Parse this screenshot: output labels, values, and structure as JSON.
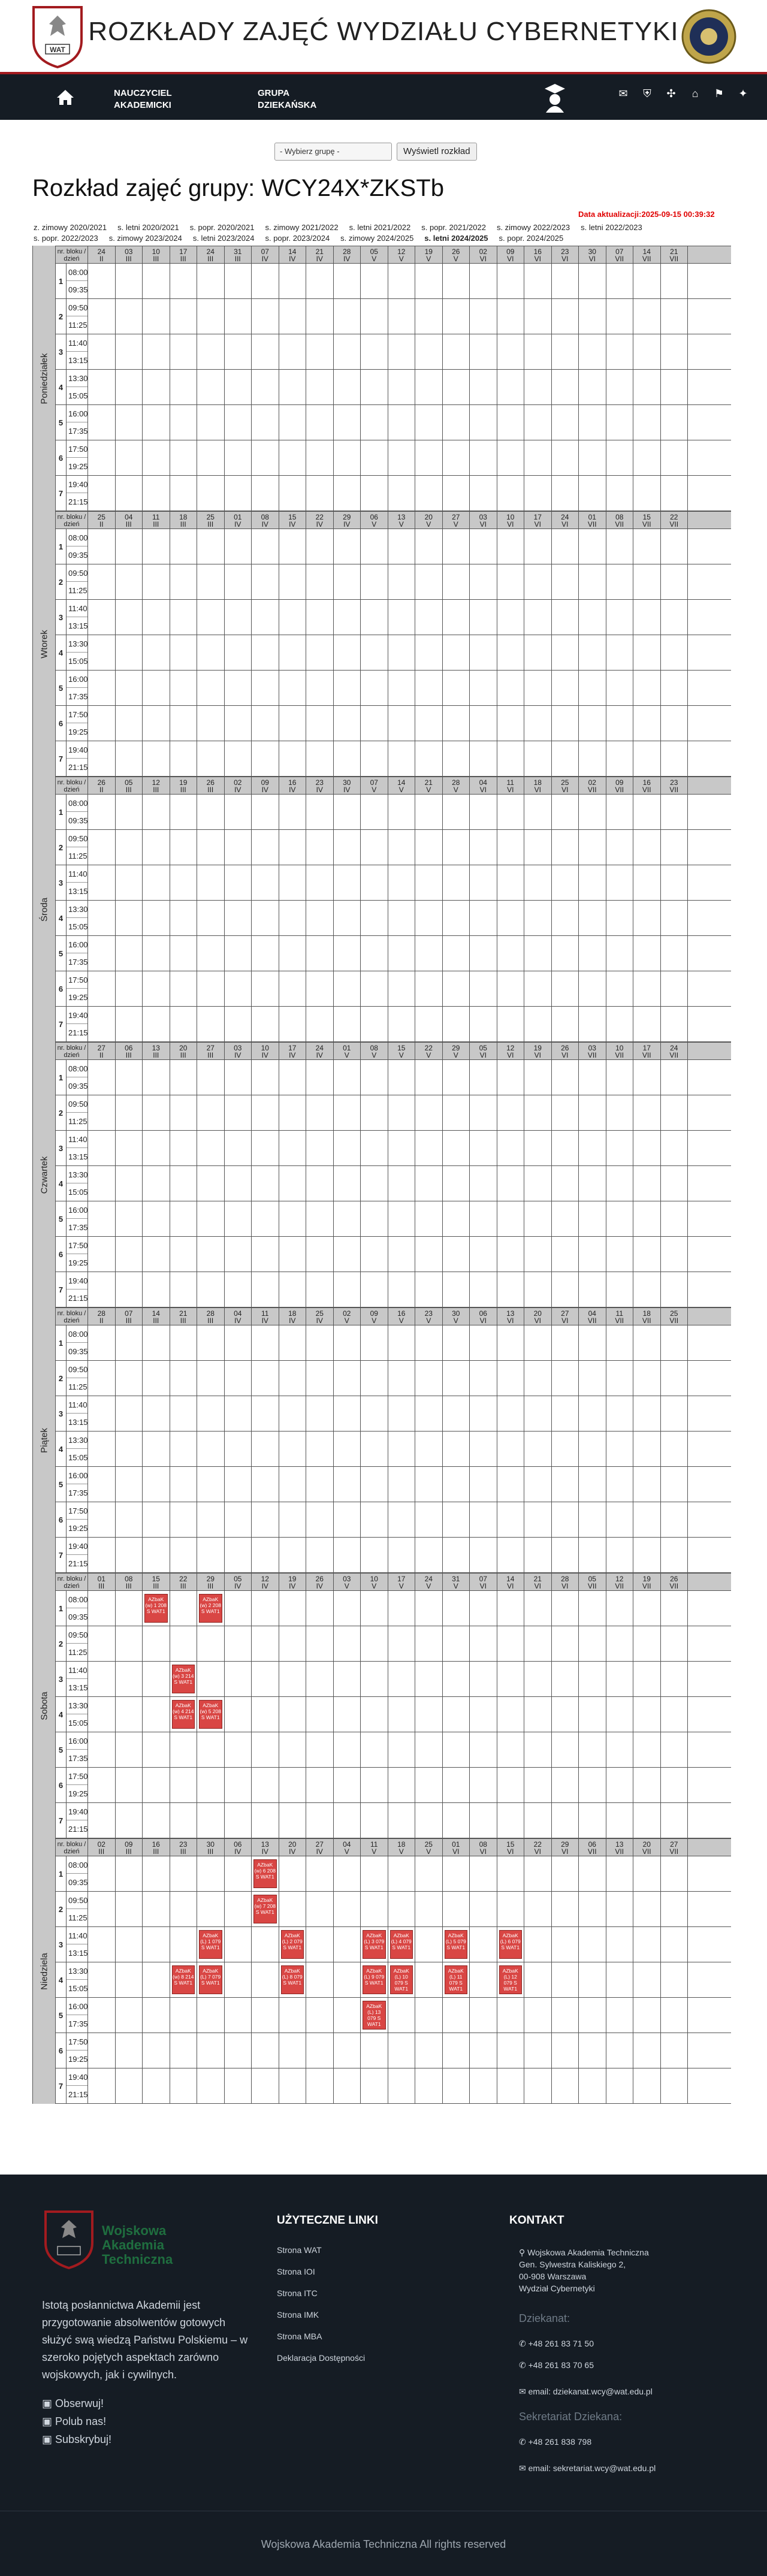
{
  "header": {
    "title": "ROZKŁADY ZAJĘĆ WYDZIAŁU CYBERNETYKI",
    "logo_text": "WAT"
  },
  "nav": {
    "teacher": "NAUCZYCIEL AKADEMICKI",
    "group": "GRUPA DZIEKAŃSKA"
  },
  "controls": {
    "select_value": "- Wybierz grupę -",
    "show_button": "Wyświetl rozkład"
  },
  "page_title": "Rozkład zajęć grupy: WCY24X*ZKSTb",
  "updated": "Data aktualizacji:2025-09-15 00:39:32",
  "semesters_row1": [
    "z. zimowy 2020/2021",
    "s. letni 2020/2021",
    "s. popr. 2020/2021",
    "s. zimowy 2021/2022",
    "s. letni 2021/2022",
    "s. popr. 2021/2022",
    "s. zimowy 2022/2023",
    "s. letni 2022/2023"
  ],
  "semesters_row2": [
    "s. popr. 2022/2023",
    "s. zimowy 2023/2024",
    "s. letni 2023/2024",
    "s. popr. 2023/2024",
    "s. zimowy 2024/2025",
    "s. letni 2024/2025",
    "s. popr. 2024/2025"
  ],
  "table": {
    "header_label": "nr. bloku / dzień",
    "block_times": [
      [
        "08:00",
        "09:35"
      ],
      [
        "09:50",
        "11:25"
      ],
      [
        "11:40",
        "13:15"
      ],
      [
        "13:30",
        "15:05"
      ],
      [
        "16:00",
        "17:35"
      ],
      [
        "17:50",
        "19:25"
      ],
      [
        "19:40",
        "21:15"
      ]
    ],
    "days": [
      {
        "name": "Poniedziałek",
        "dates": [
          [
            "24",
            "II"
          ],
          [
            "03",
            "III"
          ],
          [
            "10",
            "III"
          ],
          [
            "17",
            "III"
          ],
          [
            "24",
            "III"
          ],
          [
            "31",
            "III"
          ],
          [
            "07",
            "IV"
          ],
          [
            "14",
            "IV"
          ],
          [
            "21",
            "IV"
          ],
          [
            "28",
            "IV"
          ],
          [
            "05",
            "V"
          ],
          [
            "12",
            "V"
          ],
          [
            "19",
            "V"
          ],
          [
            "26",
            "V"
          ],
          [
            "02",
            "VI"
          ],
          [
            "09",
            "VI"
          ],
          [
            "16",
            "VI"
          ],
          [
            "23",
            "VI"
          ],
          [
            "30",
            "VI"
          ],
          [
            "07",
            "VII"
          ],
          [
            "14",
            "VII"
          ],
          [
            "21",
            "VII"
          ]
        ],
        "events": []
      },
      {
        "name": "Wtorek",
        "dates": [
          [
            "25",
            "II"
          ],
          [
            "04",
            "III"
          ],
          [
            "11",
            "III"
          ],
          [
            "18",
            "III"
          ],
          [
            "25",
            "III"
          ],
          [
            "01",
            "IV"
          ],
          [
            "08",
            "IV"
          ],
          [
            "15",
            "IV"
          ],
          [
            "22",
            "IV"
          ],
          [
            "29",
            "IV"
          ],
          [
            "06",
            "V"
          ],
          [
            "13",
            "V"
          ],
          [
            "20",
            "V"
          ],
          [
            "27",
            "V"
          ],
          [
            "03",
            "VI"
          ],
          [
            "10",
            "VI"
          ],
          [
            "17",
            "VI"
          ],
          [
            "24",
            "VI"
          ],
          [
            "01",
            "VII"
          ],
          [
            "08",
            "VII"
          ],
          [
            "15",
            "VII"
          ],
          [
            "22",
            "VII"
          ]
        ],
        "events": []
      },
      {
        "name": "Środa",
        "dates": [
          [
            "26",
            "II"
          ],
          [
            "05",
            "III"
          ],
          [
            "12",
            "III"
          ],
          [
            "19",
            "III"
          ],
          [
            "26",
            "III"
          ],
          [
            "02",
            "IV"
          ],
          [
            "09",
            "IV"
          ],
          [
            "16",
            "IV"
          ],
          [
            "23",
            "IV"
          ],
          [
            "30",
            "IV"
          ],
          [
            "07",
            "V"
          ],
          [
            "14",
            "V"
          ],
          [
            "21",
            "V"
          ],
          [
            "28",
            "V"
          ],
          [
            "04",
            "VI"
          ],
          [
            "11",
            "VI"
          ],
          [
            "18",
            "VI"
          ],
          [
            "25",
            "VI"
          ],
          [
            "02",
            "VII"
          ],
          [
            "09",
            "VII"
          ],
          [
            "16",
            "VII"
          ],
          [
            "23",
            "VII"
          ]
        ],
        "events": []
      },
      {
        "name": "Czwartek",
        "dates": [
          [
            "27",
            "II"
          ],
          [
            "06",
            "III"
          ],
          [
            "13",
            "III"
          ],
          [
            "20",
            "III"
          ],
          [
            "27",
            "III"
          ],
          [
            "03",
            "IV"
          ],
          [
            "10",
            "IV"
          ],
          [
            "17",
            "IV"
          ],
          [
            "24",
            "IV"
          ],
          [
            "01",
            "V"
          ],
          [
            "08",
            "V"
          ],
          [
            "15",
            "V"
          ],
          [
            "22",
            "V"
          ],
          [
            "29",
            "V"
          ],
          [
            "05",
            "VI"
          ],
          [
            "12",
            "VI"
          ],
          [
            "19",
            "VI"
          ],
          [
            "26",
            "VI"
          ],
          [
            "03",
            "VII"
          ],
          [
            "10",
            "VII"
          ],
          [
            "17",
            "VII"
          ],
          [
            "24",
            "VII"
          ]
        ],
        "events": []
      },
      {
        "name": "Piątek",
        "dates": [
          [
            "28",
            "II"
          ],
          [
            "07",
            "III"
          ],
          [
            "14",
            "III"
          ],
          [
            "21",
            "III"
          ],
          [
            "28",
            "III"
          ],
          [
            "04",
            "IV"
          ],
          [
            "11",
            "IV"
          ],
          [
            "18",
            "IV"
          ],
          [
            "25",
            "IV"
          ],
          [
            "02",
            "V"
          ],
          [
            "09",
            "V"
          ],
          [
            "16",
            "V"
          ],
          [
            "23",
            "V"
          ],
          [
            "30",
            "V"
          ],
          [
            "06",
            "VI"
          ],
          [
            "13",
            "VI"
          ],
          [
            "20",
            "VI"
          ],
          [
            "27",
            "VI"
          ],
          [
            "04",
            "VII"
          ],
          [
            "11",
            "VII"
          ],
          [
            "18",
            "VII"
          ],
          [
            "25",
            "VII"
          ]
        ],
        "events": []
      },
      {
        "name": "Sobota",
        "dates": [
          [
            "01",
            "III"
          ],
          [
            "08",
            "III"
          ],
          [
            "15",
            "III"
          ],
          [
            "22",
            "III"
          ],
          [
            "29",
            "III"
          ],
          [
            "05",
            "IV"
          ],
          [
            "12",
            "IV"
          ],
          [
            "19",
            "IV"
          ],
          [
            "26",
            "IV"
          ],
          [
            "03",
            "V"
          ],
          [
            "10",
            "V"
          ],
          [
            "17",
            "V"
          ],
          [
            "24",
            "V"
          ],
          [
            "31",
            "V"
          ],
          [
            "07",
            "VI"
          ],
          [
            "14",
            "VI"
          ],
          [
            "21",
            "VI"
          ],
          [
            "28",
            "VI"
          ],
          [
            "05",
            "VII"
          ],
          [
            "12",
            "VII"
          ],
          [
            "19",
            "VII"
          ],
          [
            "26",
            "VII"
          ]
        ],
        "events": [
          {
            "col": 2,
            "block": 0,
            "text": "AZbaK (w) 1 208 S WAT1"
          },
          {
            "col": 4,
            "block": 0,
            "text": "AZbaK (w) 2 208 S WAT1"
          },
          {
            "col": 3,
            "block": 2,
            "text": "AZbaK (w) 3 214 S WAT1"
          },
          {
            "col": 3,
            "block": 3,
            "text": "AZbaK (w) 4 214 S WAT1"
          },
          {
            "col": 4,
            "block": 3,
            "text": "AZbaK (w) 5 208 S WAT1"
          }
        ]
      },
      {
        "name": "Niedziela",
        "dates": [
          [
            "02",
            "III"
          ],
          [
            "09",
            "III"
          ],
          [
            "16",
            "III"
          ],
          [
            "23",
            "III"
          ],
          [
            "30",
            "III"
          ],
          [
            "06",
            "IV"
          ],
          [
            "13",
            "IV"
          ],
          [
            "20",
            "IV"
          ],
          [
            "27",
            "IV"
          ],
          [
            "04",
            "V"
          ],
          [
            "11",
            "V"
          ],
          [
            "18",
            "V"
          ],
          [
            "25",
            "V"
          ],
          [
            "01",
            "VI"
          ],
          [
            "08",
            "VI"
          ],
          [
            "15",
            "VI"
          ],
          [
            "22",
            "VI"
          ],
          [
            "29",
            "VI"
          ],
          [
            "06",
            "VII"
          ],
          [
            "13",
            "VII"
          ],
          [
            "20",
            "VII"
          ],
          [
            "27",
            "VII"
          ]
        ],
        "events": [
          {
            "col": 6,
            "block": 0,
            "text": "AZbaK (w) 6 208 S WAT1"
          },
          {
            "col": 6,
            "block": 1,
            "text": "AZbaK (w) 7 208 S WAT1"
          },
          {
            "col": 4,
            "block": 2,
            "text": "AZbaK (L) 1 079 S WAT1"
          },
          {
            "col": 7,
            "block": 2,
            "text": "AZbaK (L) 2 079 S WAT1"
          },
          {
            "col": 10,
            "block": 2,
            "text": "AZbaK (L) 3 079 S WAT1"
          },
          {
            "col": 11,
            "block": 2,
            "text": "AZbaK (L) 4 079 S WAT1"
          },
          {
            "col": 13,
            "block": 2,
            "text": "AZbaK (L) 5 079 S WAT1"
          },
          {
            "col": 15,
            "block": 2,
            "text": "AZbaK (L) 6 079 S WAT1"
          },
          {
            "col": 3,
            "block": 3,
            "text": "AZbaK (w) 8 214 S WAT1"
          },
          {
            "col": 4,
            "block": 3,
            "text": "AZbaK (L) 7 079 S WAT1"
          },
          {
            "col": 7,
            "block": 3,
            "text": "AZbaK (L) 8 079 S WAT1"
          },
          {
            "col": 10,
            "block": 3,
            "text": "AZbaK (L) 9 079 S WAT1"
          },
          {
            "col": 11,
            "block": 3,
            "text": "AZbaK (L) 10 079 S WAT1"
          },
          {
            "col": 13,
            "block": 3,
            "text": "AZbaK (L) 11 079 S WAT1"
          },
          {
            "col": 15,
            "block": 3,
            "text": "AZbaK (L) 12 079 S WAT1"
          },
          {
            "col": 10,
            "block": 4,
            "text": "AZbaK (L) 13 079 S WAT1"
          }
        ]
      }
    ]
  },
  "footer": {
    "brand": [
      "Wojskowa",
      "Akademia",
      "Techniczna"
    ],
    "description": "Istotą posłannictwa Akademii jest przygotowanie absolwentów gotowych służyć swą wiedzą Państwu Polskiemu – w szeroko pojętych aspektach zarówno wojskowych, jak i cywilnych.",
    "social": [
      "Obserwuj!",
      "Polub nas!",
      "Subskrybuj!"
    ],
    "links_title": "UŻYTECZNE LINKI",
    "links": [
      "Strona WAT",
      "Strona IOI",
      "Strona ITC",
      "Strona IMK",
      "Strona MBA",
      "Deklaracja Dostępności"
    ],
    "contact_title": "KONTAKT",
    "address": [
      "Wojskowa Akademia Techniczna",
      "Gen. Sylwestra Kaliskiego 2,",
      "00-908 Warszawa",
      "Wydział Cybernetyki"
    ],
    "dean_title": "Dziekanat:",
    "dean_phones": [
      "+48 261 83 71 50",
      "+48 261 83 70 65"
    ],
    "dean_email": "email: dziekanat.wcy@wat.edu.pl",
    "sec_title": "Sekretariat Dziekana:",
    "sec_phone": "+48 261 838 798",
    "sec_email": "email: sekretariat.wcy@wat.edu.pl",
    "copyright": "Wojskowa Akademia Techniczna All rights reserved"
  }
}
